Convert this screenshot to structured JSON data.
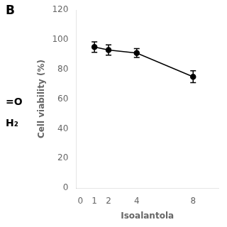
{
  "chart_data": {
    "type": "line",
    "x_label": "Isoalantola",
    "y_label": "Cell viability (%)",
    "annotations": [
      "B",
      "=O",
      "H₂"
    ],
    "x": [
      1,
      2,
      4,
      8
    ],
    "series": [
      {
        "values": [
          95,
          93,
          91,
          75
        ],
        "errors": [
          3.5,
          3.5,
          3.0,
          4.0
        ],
        "color": "#000000",
        "marker": "circle",
        "line_style": "solid"
      }
    ],
    "xlim": [
      -0.3,
      9.8
    ],
    "xticks": [
      0,
      1,
      2,
      4,
      8
    ],
    "ylim": [
      0,
      120
    ],
    "yticks": [
      0,
      20,
      40,
      60,
      80,
      100,
      120
    ],
    "grid": false
  }
}
